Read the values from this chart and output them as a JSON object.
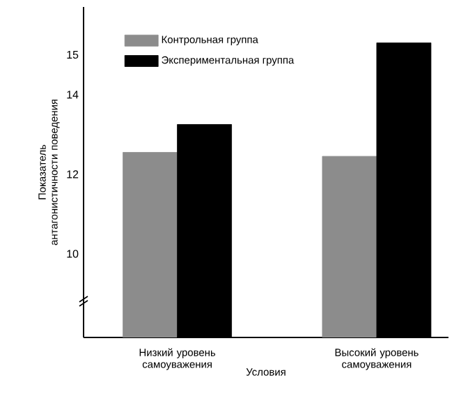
{
  "chart_data": {
    "type": "bar",
    "xlabel": "Условия",
    "ylabel": "Показатель антагонистичности поведения",
    "categories": [
      "Низкий уровень самоуважения",
      "Высокий уровень самоуважения"
    ],
    "series": [
      {
        "name": "Контрольная группа",
        "color": "#8c8c8c",
        "values": [
          12.55,
          12.45
        ]
      },
      {
        "name": "Экспериментальная группа",
        "color": "#000000",
        "values": [
          13.25,
          15.3
        ]
      }
    ],
    "ylim": [
      7.9,
      16.2
    ],
    "yticks": [
      10,
      12,
      14,
      15
    ],
    "legend": "top left"
  }
}
